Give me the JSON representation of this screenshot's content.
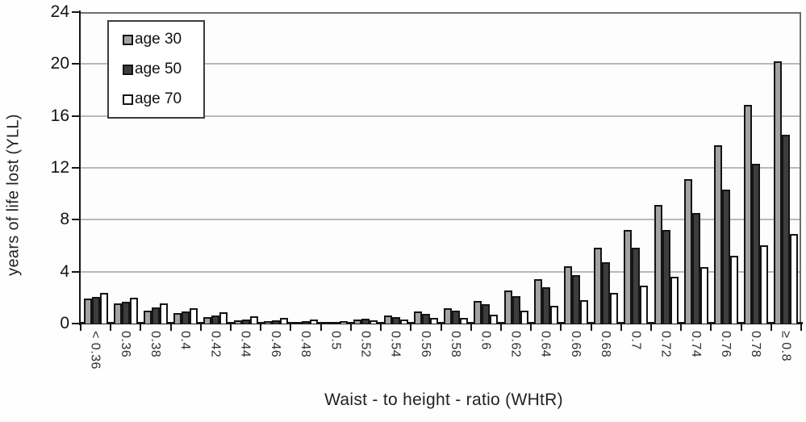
{
  "chart_data": {
    "type": "bar",
    "title": "",
    "xlabel": "Waist - to height - ratio (WHtR)",
    "ylabel": "years of life lost (YLL)",
    "ylim": [
      0,
      24
    ],
    "yticks": [
      0,
      4,
      8,
      12,
      16,
      20,
      24
    ],
    "grid": true,
    "legend_position": "top-left",
    "categories": [
      "< 0.36",
      "0.36",
      "0.38",
      "0.4",
      "0.42",
      "0.44",
      "0.46",
      "0.48",
      "0.5",
      "0.52",
      "0.54",
      "0.56",
      "0.58",
      "0.6",
      "0.62",
      "0.64",
      "0.66",
      "0.68",
      "0.7",
      "0.72",
      "0.74",
      "0.76",
      "0.78",
      "≥ 0.8"
    ],
    "series": [
      {
        "name": "age 30",
        "color": "#a3a3a3",
        "values": [
          1.8,
          1.4,
          0.9,
          0.7,
          0.35,
          0.1,
          0.05,
          0.03,
          0.02,
          0.2,
          0.5,
          0.8,
          1.05,
          1.6,
          2.4,
          3.3,
          4.3,
          5.7,
          7.1,
          9.0,
          11.0,
          13.6,
          16.7,
          20.1
        ]
      },
      {
        "name": "age 50",
        "color": "#3d3d3d",
        "values": [
          1.95,
          1.55,
          1.1,
          0.8,
          0.5,
          0.2,
          0.1,
          0.05,
          0.03,
          0.25,
          0.4,
          0.65,
          0.85,
          1.35,
          2.0,
          2.7,
          3.6,
          4.6,
          5.7,
          7.1,
          8.4,
          10.2,
          12.2,
          14.4
        ]
      },
      {
        "name": "age 70",
        "color": "#ffffff",
        "values": [
          2.25,
          1.85,
          1.4,
          1.05,
          0.75,
          0.45,
          0.3,
          0.18,
          0.05,
          0.15,
          0.2,
          0.3,
          0.3,
          0.55,
          0.85,
          1.25,
          1.7,
          2.25,
          2.8,
          3.5,
          4.2,
          5.1,
          5.9,
          6.8
        ]
      }
    ]
  }
}
